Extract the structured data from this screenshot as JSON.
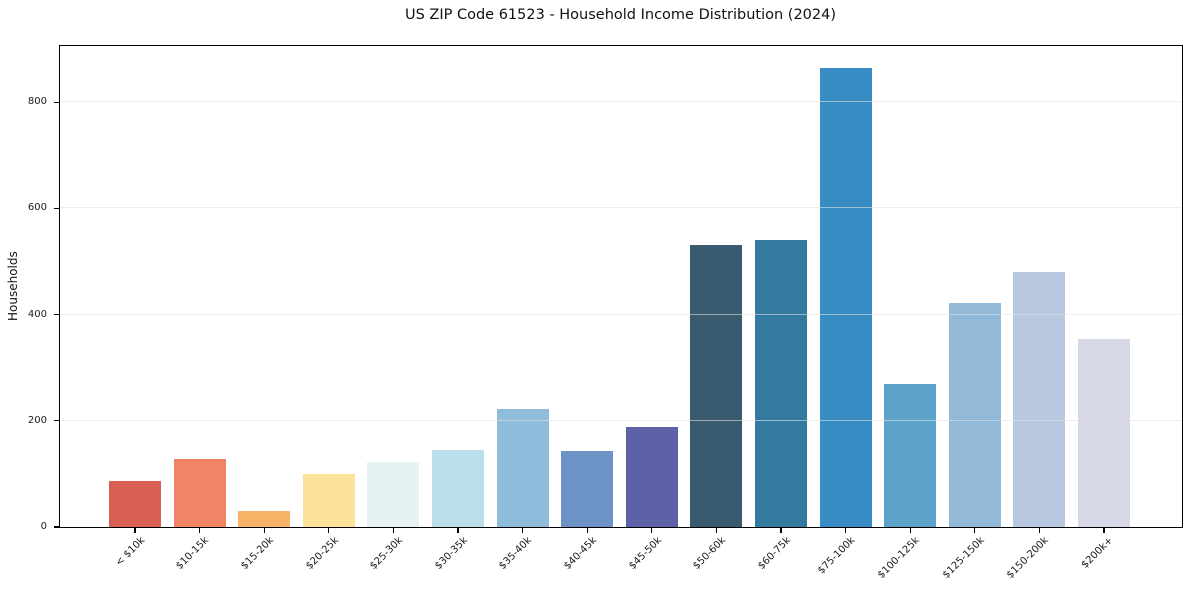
{
  "chart_data": {
    "type": "bar",
    "title": "US ZIP Code 61523 - Household Income Distribution (2024)",
    "xlabel": "",
    "ylabel": "Households",
    "ylim": [
      0,
      906
    ],
    "yticks": [
      0,
      200,
      400,
      600,
      800
    ],
    "grid": "horizontal",
    "legend": "none",
    "categories": [
      "< $10k",
      "$10-15k",
      "$15-20k",
      "$20-25k",
      "$25-30k",
      "$30-35k",
      "$35-40k",
      "$40-45k",
      "$45-50k",
      "$50-60k",
      "$60-75k",
      "$75-100k",
      "$100-125k",
      "$125-150k",
      "$150-200k",
      "$200k+"
    ],
    "values": [
      87,
      128,
      30,
      100,
      122,
      145,
      222,
      143,
      189,
      531,
      540,
      864,
      269,
      422,
      480,
      354
    ],
    "bar_colors": [
      "#d95f55",
      "#f08465",
      "#f9b369",
      "#fce19a",
      "#e7f2f4",
      "#b9dfeb",
      "#8fbcdb",
      "#6c92c6",
      "#5c61a8",
      "#3a5a6f",
      "#327b9f",
      "#368cc3",
      "#5ba3c9",
      "#93b9d9",
      "#b7c8e0",
      "#d7d8e7"
    ]
  }
}
